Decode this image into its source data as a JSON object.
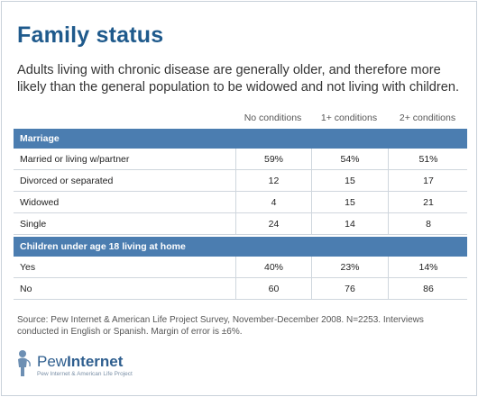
{
  "title": "Family status",
  "subtitle": "Adults living with chronic disease are generally older, and therefore more likely than the general population to be widowed and not living with children.",
  "chart_data": {
    "type": "table",
    "columns": [
      "No conditions",
      "1+ conditions",
      "2+ conditions"
    ],
    "sections": [
      {
        "name": "Marriage",
        "rows": [
          {
            "label": "Married or living w/partner",
            "values": [
              "59%",
              "54%",
              "51%"
            ]
          },
          {
            "label": "Divorced or separated",
            "values": [
              "12",
              "15",
              "17"
            ]
          },
          {
            "label": "Widowed",
            "values": [
              "4",
              "15",
              "21"
            ]
          },
          {
            "label": "Single",
            "values": [
              "24",
              "14",
              "8"
            ]
          }
        ]
      },
      {
        "name": "Children under age 18 living at home",
        "rows": [
          {
            "label": "Yes",
            "values": [
              "40%",
              "23%",
              "14%"
            ]
          },
          {
            "label": "No",
            "values": [
              "60",
              "76",
              "86"
            ]
          }
        ]
      }
    ]
  },
  "source": "Source: Pew Internet & American Life Project Survey, November-December 2008. N=2253. Interviews conducted in English or Spanish.  Margin of error is ±6%.",
  "logo": {
    "word1": "Pew",
    "word2": "Internet",
    "tagline": "Pew Internet & American Life Project",
    "icon": "person-icon"
  },
  "colors": {
    "title": "#1f5a8c",
    "section_bar": "#4b7db0",
    "rule": "#cfd6dd"
  }
}
